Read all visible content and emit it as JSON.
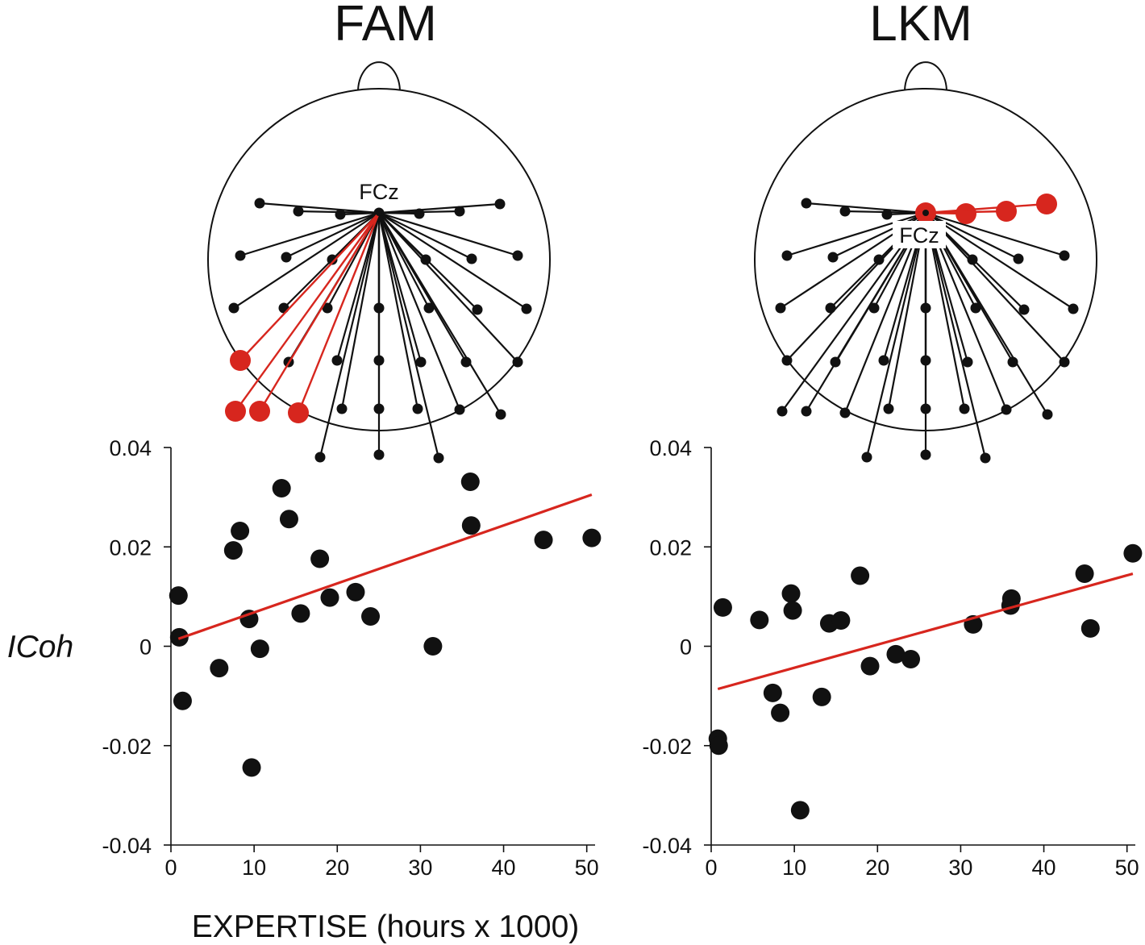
{
  "figure": {
    "ylabel": "ICoh",
    "xlabel": "EXPERTISE (hours x 1000)"
  },
  "colors": {
    "point": "#111111",
    "highlight": "#d7261e",
    "regression": "#d7261e",
    "axis": "#111111"
  },
  "panels": [
    {
      "id": "fam",
      "title": "FAM",
      "head": {
        "hub_label": "FCz",
        "highlighted_electrodes": [
          "left-temporal-posterior",
          "left-parietal-lateral",
          "left-parietal-mid",
          "left-parietal-medial"
        ]
      }
    },
    {
      "id": "lkm",
      "title": "LKM",
      "head": {
        "hub_label": "FCz",
        "highlighted_electrodes": [
          "frontal-midline",
          "frontal-right-1",
          "frontal-right-2",
          "frontal-right-3"
        ]
      }
    }
  ],
  "chart_data": [
    {
      "type": "scatter",
      "title": "FAM",
      "xlabel": "",
      "ylabel": "ICoh",
      "xlim": [
        0,
        51
      ],
      "ylim": [
        -0.04,
        0.04
      ],
      "xticks": [
        "0",
        "10",
        "20",
        "30",
        "40",
        "50"
      ],
      "yticks": [
        "0.04",
        "0.02",
        "0",
        "-0.02",
        "-0.04"
      ],
      "x": [
        0.9,
        1.0,
        1.4,
        5.8,
        7.5,
        8.3,
        9.4,
        9.7,
        10.7,
        13.3,
        14.2,
        15.6,
        17.9,
        19.1,
        22.2,
        24.0,
        31.5,
        36.0,
        36.1,
        44.8,
        50.6
      ],
      "y": [
        0.0102,
        0.0018,
        -0.011,
        -0.0044,
        0.0193,
        0.0232,
        0.0055,
        -0.0244,
        -0.0005,
        0.0318,
        0.0256,
        0.0066,
        0.0176,
        0.0098,
        0.0109,
        0.006,
        0.0,
        0.0331,
        0.0243,
        0.0214,
        0.0218
      ],
      "regression": {
        "x": [
          0.9,
          50.6
        ],
        "y": [
          0.0015,
          0.0305
        ]
      }
    },
    {
      "type": "scatter",
      "title": "LKM",
      "xlabel": "EXPERTISE (hours x 1000)",
      "ylabel": "",
      "xlim": [
        0,
        51
      ],
      "ylim": [
        -0.04,
        0.04
      ],
      "xticks": [
        "0",
        "10",
        "20",
        "30",
        "40",
        "50"
      ],
      "yticks": [
        "0.04",
        "0.02",
        "0",
        "-0.02",
        "-0.04"
      ],
      "x": [
        0.8,
        0.9,
        1.4,
        5.8,
        7.4,
        8.3,
        9.6,
        9.8,
        10.7,
        13.3,
        14.2,
        15.6,
        17.9,
        19.1,
        22.2,
        24.0,
        31.5,
        36.0,
        36.1,
        44.9,
        45.6,
        50.7
      ],
      "y": [
        -0.0186,
        -0.02,
        0.0078,
        0.0053,
        -0.0094,
        -0.0134,
        0.0106,
        0.0072,
        -0.033,
        -0.0102,
        0.0046,
        0.0052,
        0.0142,
        -0.004,
        -0.0016,
        -0.0026,
        0.0044,
        0.0082,
        0.0096,
        0.0146,
        0.0036,
        0.0187
      ],
      "regression": {
        "x": [
          0.8,
          50.7
        ],
        "y": [
          -0.0086,
          0.0146
        ]
      }
    }
  ]
}
